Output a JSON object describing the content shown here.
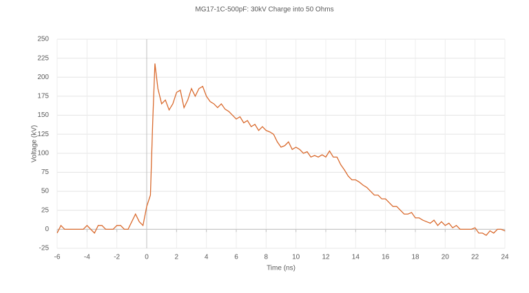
{
  "chart_data": {
    "type": "line",
    "title": "MG17-1C-500pF: 30kV Charge into 50 Ohms",
    "x_label": "Time (ns)",
    "y_label": "Voltage (kV)",
    "xlim": [
      -6,
      24
    ],
    "ylim": [
      -25,
      250
    ],
    "xticks": [
      -6,
      -4,
      -2,
      0,
      2,
      4,
      6,
      8,
      10,
      12,
      14,
      16,
      18,
      20,
      22,
      24
    ],
    "yticks": [
      -25,
      0,
      25,
      50,
      75,
      100,
      125,
      150,
      175,
      200,
      225,
      250
    ],
    "grid": true,
    "x": [
      -6,
      -5.75,
      -5.5,
      -5.25,
      -5,
      -4.75,
      -4.5,
      -4.25,
      -4,
      -3.75,
      -3.5,
      -3.25,
      -3,
      -2.75,
      -2.5,
      -2.25,
      -2,
      -1.75,
      -1.5,
      -1.25,
      -1,
      -0.75,
      -0.5,
      -0.25,
      0,
      0.25,
      0.4,
      0.55,
      0.75,
      1,
      1.25,
      1.5,
      1.75,
      2,
      2.25,
      2.5,
      2.75,
      3,
      3.25,
      3.5,
      3.75,
      4,
      4.25,
      4.5,
      4.75,
      5,
      5.25,
      5.5,
      5.75,
      6,
      6.25,
      6.5,
      6.75,
      7,
      7.25,
      7.5,
      7.75,
      8,
      8.25,
      8.5,
      8.75,
      9,
      9.25,
      9.5,
      9.75,
      10,
      10.25,
      10.5,
      10.75,
      11,
      11.25,
      11.5,
      11.75,
      12,
      12.25,
      12.5,
      12.75,
      13,
      13.25,
      13.5,
      13.75,
      14,
      14.25,
      14.5,
      14.75,
      15,
      15.25,
      15.5,
      15.75,
      16,
      16.25,
      16.5,
      16.75,
      17,
      17.25,
      17.5,
      17.75,
      18,
      18.25,
      18.5,
      18.75,
      19,
      19.25,
      19.5,
      19.75,
      20,
      20.25,
      20.5,
      20.75,
      21,
      21.25,
      21.5,
      21.75,
      22,
      22.25,
      22.5,
      22.75,
      23,
      23.25,
      23.5,
      23.75,
      24
    ],
    "series": [
      {
        "color": "#d9692c",
        "values": [
          -5,
          5,
          0,
          0,
          0,
          0,
          0,
          0,
          5,
          0,
          -5,
          5,
          5,
          0,
          0,
          0,
          5,
          5,
          0,
          0,
          10,
          20,
          10,
          5,
          30,
          45,
          140,
          218,
          185,
          165,
          170,
          157,
          165,
          180,
          183,
          160,
          170,
          185,
          175,
          185,
          188,
          175,
          168,
          165,
          160,
          165,
          158,
          155,
          150,
          145,
          148,
          140,
          143,
          135,
          138,
          130,
          135,
          130,
          128,
          125,
          115,
          108,
          110,
          115,
          105,
          108,
          105,
          100,
          102,
          95,
          97,
          95,
          98,
          95,
          103,
          95,
          95,
          85,
          78,
          70,
          65,
          65,
          62,
          58,
          55,
          50,
          45,
          45,
          40,
          40,
          35,
          30,
          30,
          25,
          20,
          20,
          22,
          15,
          15,
          12,
          10,
          8,
          12,
          5,
          10,
          5,
          8,
          2,
          5,
          0,
          0,
          0,
          0,
          2,
          -5,
          -5,
          -8,
          -2,
          -5,
          0,
          0,
          -2
        ]
      }
    ]
  }
}
